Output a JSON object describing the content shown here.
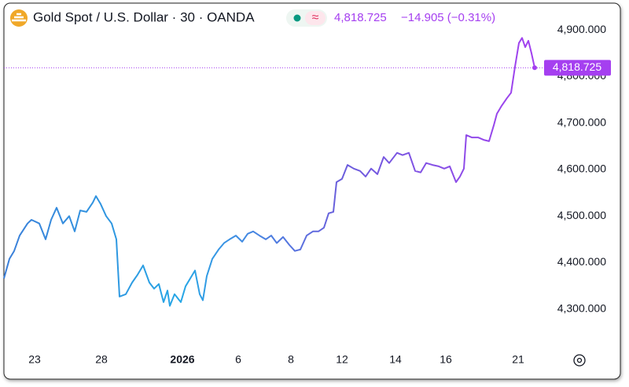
{
  "chart_data": {
    "type": "line",
    "title": "Gold Spot / U.S. Dollar · 30 · OANDA",
    "last_price": {
      "value": 4818.725,
      "label": "4,818.725"
    },
    "change": "−14.905 (−0.31%)",
    "colors": [
      "#3b7fd9",
      "#27a7e6",
      "#6a5fdc",
      "#a53ff0"
    ],
    "x": [
      0,
      7,
      13,
      20,
      30,
      35,
      45,
      53,
      60,
      67,
      75,
      83,
      90,
      97,
      105,
      113,
      117,
      123,
      130,
      137,
      143,
      147,
      155,
      163,
      170,
      177,
      185,
      191,
      197,
      203,
      208,
      211,
      217,
      225,
      231,
      237,
      243,
      249,
      253,
      258,
      265,
      273,
      280,
      287,
      295,
      303,
      310,
      317,
      325,
      333,
      340,
      347,
      355,
      363,
      370,
      377,
      385,
      393,
      400,
      407,
      413,
      419,
      423,
      430,
      437,
      445,
      453,
      460,
      467,
      475,
      483,
      490,
      500,
      507,
      515,
      523,
      530,
      537,
      545,
      553,
      560,
      567,
      575,
      580,
      585,
      588,
      595,
      603,
      610,
      617,
      623,
      627,
      633,
      640,
      645,
      650,
      655,
      659,
      663,
      667,
      671,
      675
    ],
    "values": [
      4366,
      4408,
      4425,
      4458,
      4484,
      4492,
      4484,
      4450,
      4492,
      4518,
      4484,
      4500,
      4467,
      4512,
      4509,
      4529,
      4543,
      4526,
      4500,
      4484,
      4450,
      4327,
      4332,
      4357,
      4374,
      4394,
      4357,
      4344,
      4354,
      4315,
      4340,
      4307,
      4332,
      4315,
      4349,
      4366,
      4383,
      4332,
      4319,
      4371,
      4408,
      4428,
      4442,
      4450,
      4458,
      4445,
      4462,
      4467,
      4458,
      4450,
      4458,
      4442,
      4455,
      4438,
      4425,
      4428,
      4458,
      4467,
      4467,
      4475,
      4506,
      4509,
      4573,
      4580,
      4610,
      4602,
      4597,
      4585,
      4602,
      4590,
      4627,
      4614,
      4636,
      4631,
      4636,
      4597,
      4594,
      4614,
      4610,
      4607,
      4602,
      4607,
      4573,
      4585,
      4602,
      4674,
      4669,
      4669,
      4664,
      4661,
      4695,
      4720,
      4737,
      4754,
      4765,
      4821,
      4872,
      4883,
      4863,
      4877,
      4850,
      4819
    ],
    "xlim": [
      0,
      685
    ],
    "xticks": [
      {
        "value": 39,
        "label": "23"
      },
      {
        "value": 124,
        "label": "28"
      },
      {
        "value": 227,
        "label": "2026"
      },
      {
        "value": 298,
        "label": "6"
      },
      {
        "value": 365,
        "label": "8"
      },
      {
        "value": 430,
        "label": "12"
      },
      {
        "value": 498,
        "label": "14"
      },
      {
        "value": 562,
        "label": "16"
      },
      {
        "value": 654,
        "label": "21"
      }
    ],
    "ylim": [
      4222,
      4951
    ],
    "yticks": [
      {
        "value": 4300,
        "label": "4,300.000"
      },
      {
        "value": 4400,
        "label": "4,400.000"
      },
      {
        "value": 4500,
        "label": "4,500.000"
      },
      {
        "value": 4600,
        "label": "4,600.000"
      },
      {
        "value": 4700,
        "label": "4,700.000"
      },
      {
        "value": 4800,
        "label": "4,800.000"
      },
      {
        "value": 4900,
        "label": "4,900.000"
      }
    ]
  }
}
